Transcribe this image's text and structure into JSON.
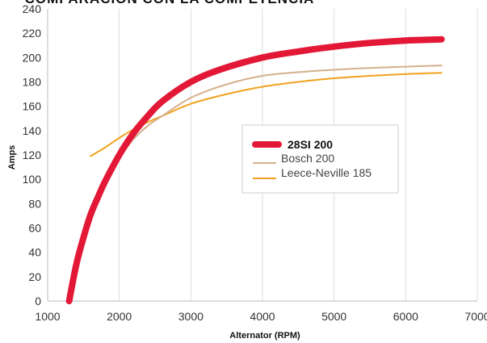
{
  "chart_data": {
    "type": "line",
    "title": "COMPARACIÓN CON LA COMPETENCIA",
    "xlabel": "Alternator (RPM)",
    "ylabel": "Amps",
    "xlim": [
      1000,
      7000
    ],
    "ylim": [
      0,
      240
    ],
    "x_ticks": [
      1000,
      2000,
      3000,
      4000,
      5000,
      6000,
      7000
    ],
    "y_ticks": [
      0,
      20,
      40,
      60,
      80,
      100,
      120,
      140,
      160,
      180,
      200,
      220,
      240
    ],
    "grid": "vertical",
    "legend_position": "center-right",
    "series": [
      {
        "name": "28SI 200",
        "color": "#e31837",
        "emphasis": true,
        "x": [
          1300,
          1400,
          1500,
          1600,
          1700,
          1800,
          2000,
          2200,
          2400,
          2600,
          3000,
          3400,
          4000,
          4500,
          5000,
          5500,
          6000,
          6500
        ],
        "y": [
          0,
          30,
          52,
          71,
          85,
          98,
          120,
          138,
          152,
          164,
          180,
          190,
          200,
          205,
          209,
          212,
          214,
          215
        ]
      },
      {
        "name": "Bosch 200",
        "color": "#d4b08c",
        "emphasis": false,
        "x": [
          1900,
          2000,
          2200,
          2400,
          2600,
          3000,
          3500,
          4000,
          4500,
          5000,
          5500,
          6000,
          6500
        ],
        "y": [
          107,
          117,
          133,
          144,
          152,
          167,
          178,
          185,
          188,
          190,
          191.5,
          192.5,
          193.5
        ]
      },
      {
        "name": "Leece-Neville 185",
        "color": "#f0a21f",
        "emphasis": false,
        "x": [
          1600,
          1800,
          2000,
          2200,
          2400,
          2600,
          3000,
          3500,
          4000,
          4500,
          5000,
          5500,
          6000,
          6500
        ],
        "y": [
          119,
          126,
          134,
          141,
          147,
          152,
          162,
          170,
          176,
          180,
          183,
          185,
          186.5,
          187.5
        ]
      }
    ]
  }
}
